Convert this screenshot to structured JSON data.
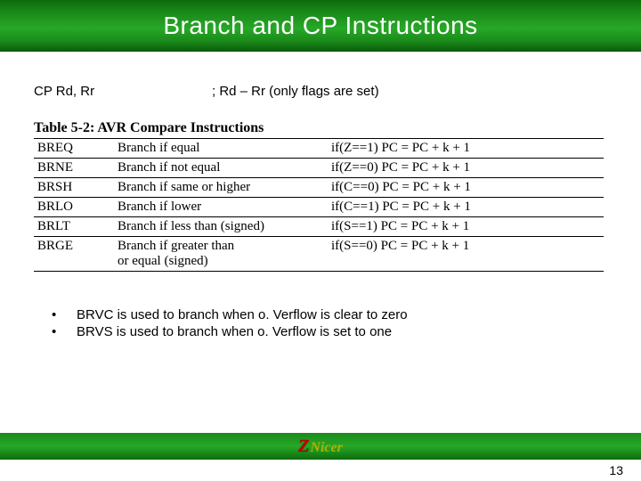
{
  "title": "Branch and CP Instructions",
  "cp_line": {
    "left": "CP Rd, Rr",
    "right": "; Rd – Rr (only flags are set)"
  },
  "table": {
    "caption": "Table 5-2: AVR Compare Instructions",
    "rows": [
      {
        "mnemonic": "BREQ",
        "desc": "Branch if equal",
        "cond": "if(Z==1) PC = PC + k + 1"
      },
      {
        "mnemonic": "BRNE",
        "desc": "Branch if not equal",
        "cond": "if(Z==0) PC = PC + k + 1"
      },
      {
        "mnemonic": "BRSH",
        "desc": "Branch if same or higher",
        "cond": "if(C==0) PC = PC + k + 1"
      },
      {
        "mnemonic": "BRLO",
        "desc": "Branch if lower",
        "cond": "if(C==1) PC = PC + k + 1"
      },
      {
        "mnemonic": "BRLT",
        "desc": "Branch if less than (signed)",
        "cond": "if(S==1) PC = PC + k + 1"
      },
      {
        "mnemonic": "BRGE",
        "desc": "Branch if greater than\nor equal (signed)",
        "cond": "if(S==0) PC = PC + k + 1"
      }
    ]
  },
  "bullets": [
    "BRVC is used to branch when o. Verflow is clear to zero",
    "BRVS is used to branch when o. Verflow is set to one"
  ],
  "footer": {
    "logo_z": "Z",
    "logo_nicer": "Nicer"
  },
  "page_number": "13",
  "colors": {
    "title_gradient": [
      "#0d6b0d",
      "#27a827",
      "#0b5a0b"
    ],
    "logo_z": "#c00000",
    "logo_nicer": "#b0b000"
  }
}
